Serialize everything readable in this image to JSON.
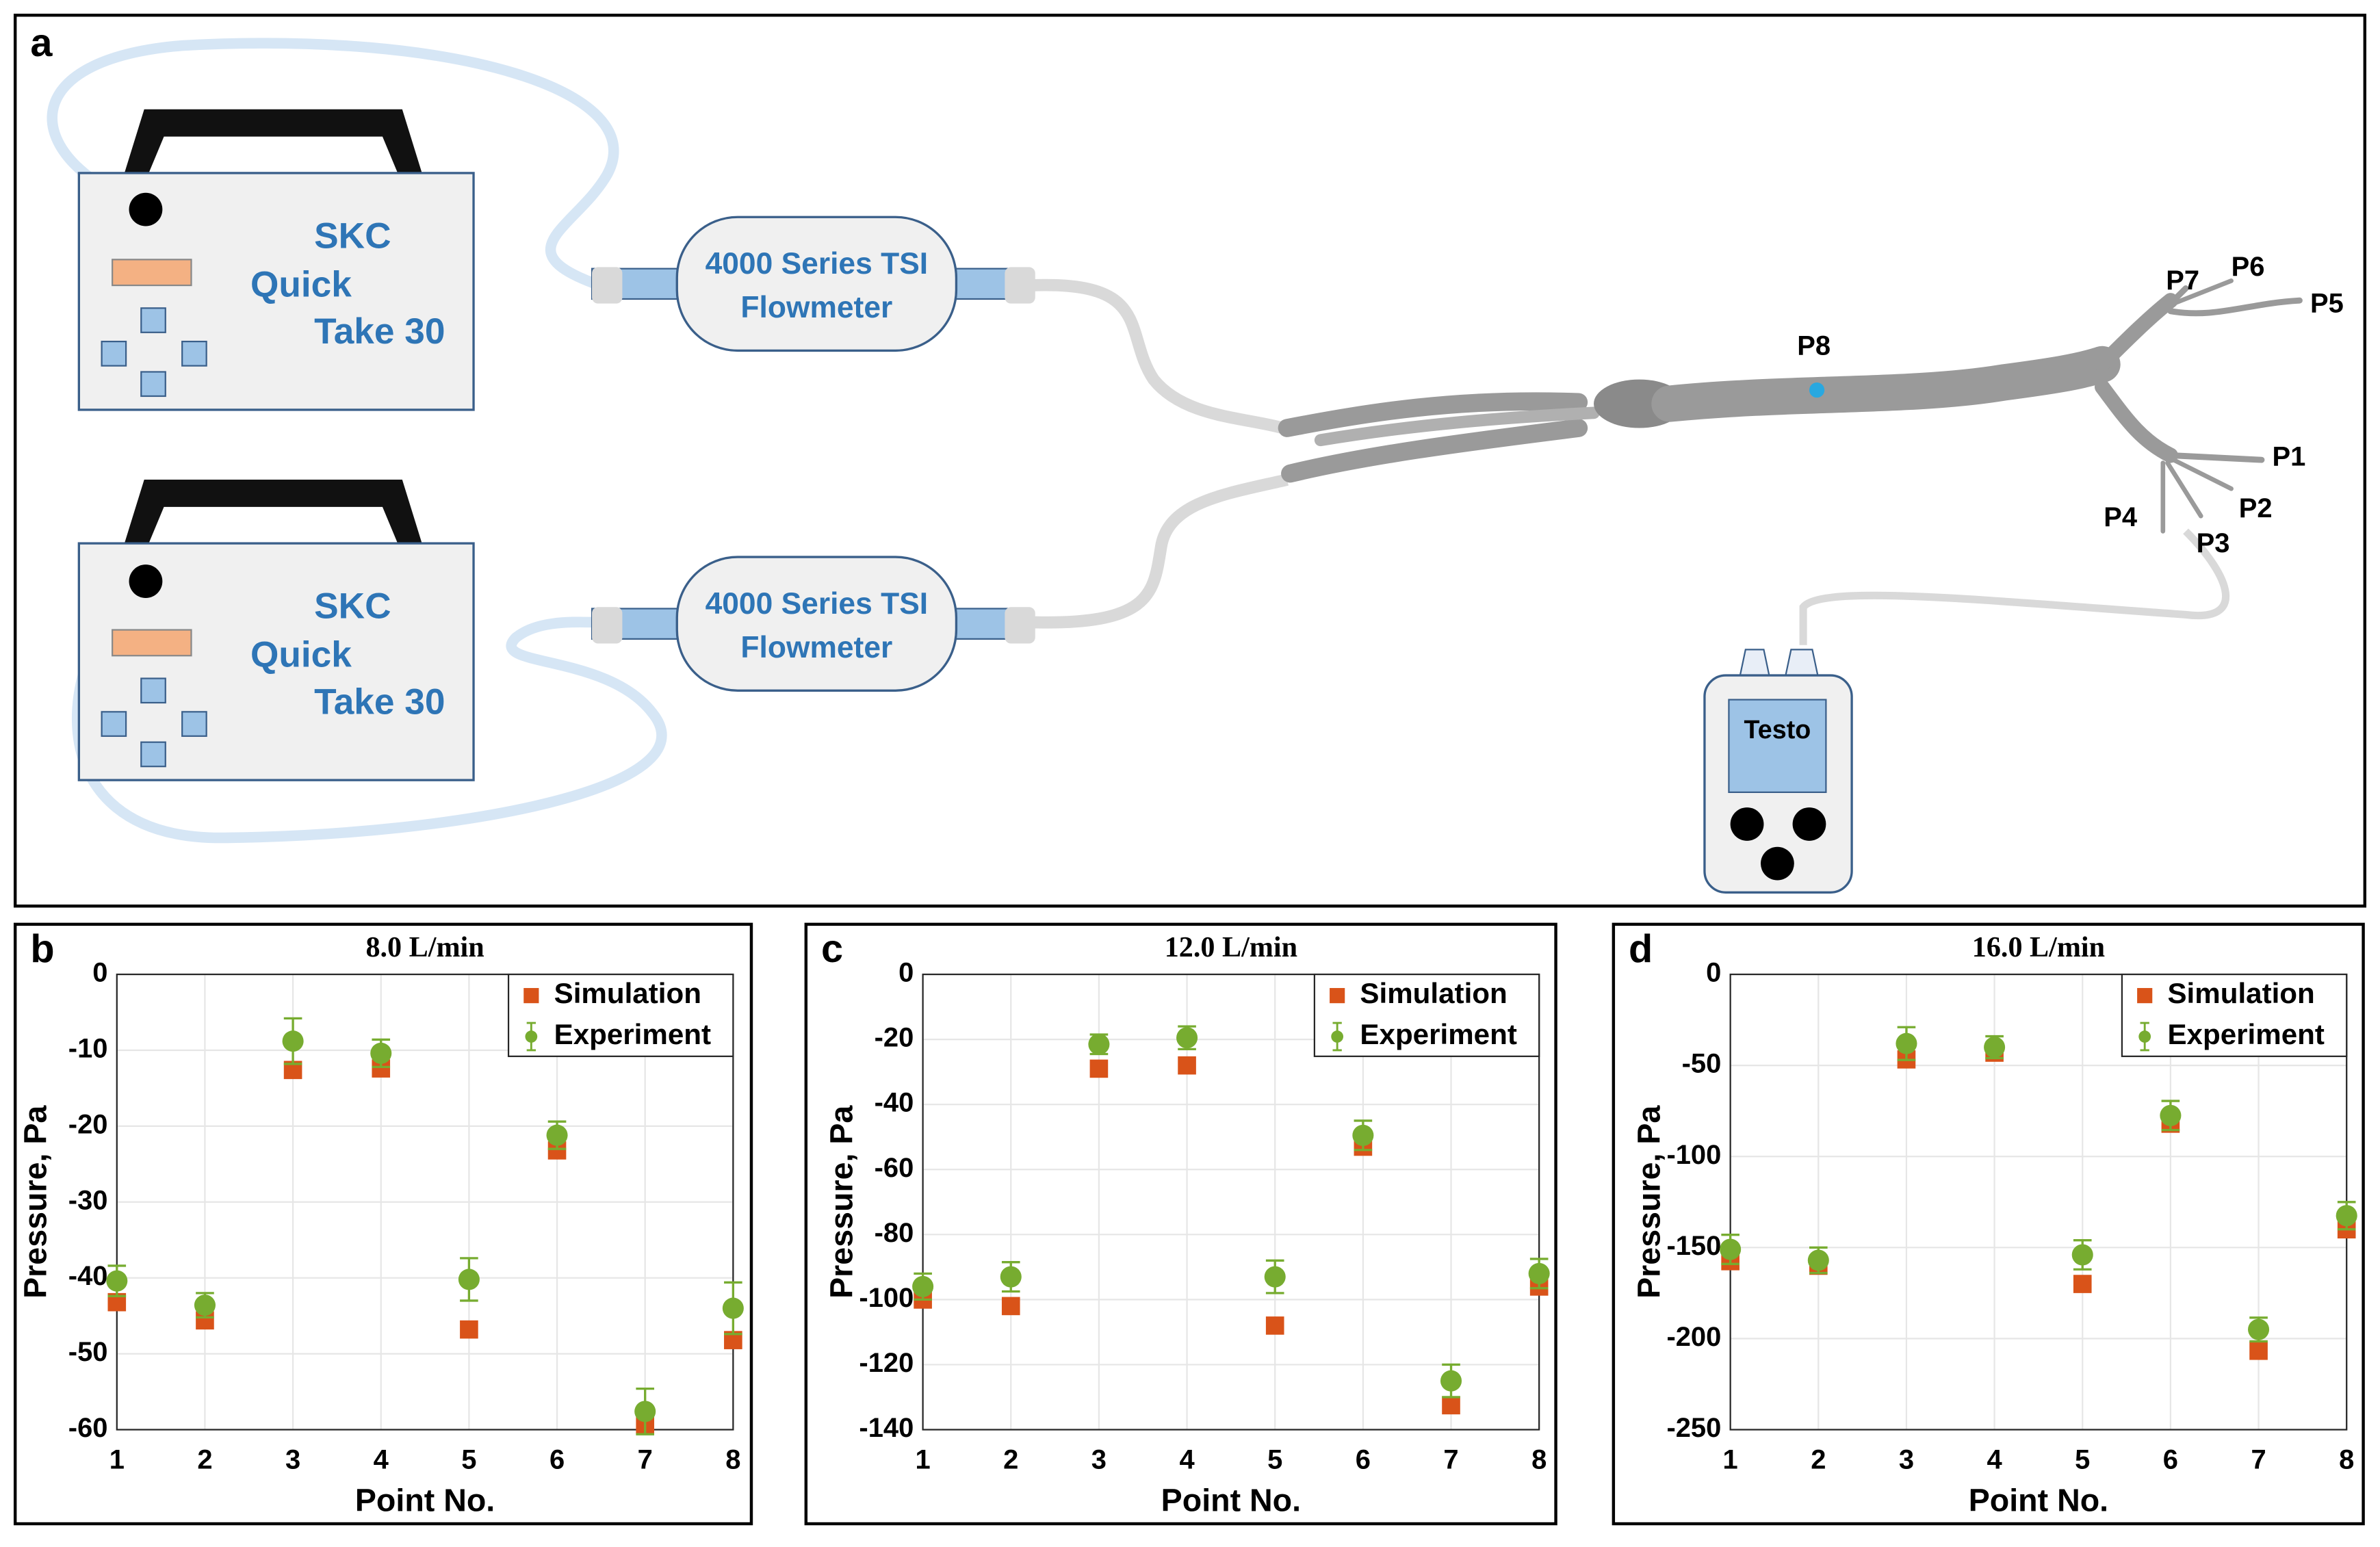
{
  "diagram": {
    "panel": "a",
    "pumps": [
      [
        "SKC",
        "Quick",
        "Take 30"
      ],
      [
        "SKC",
        "Quick",
        "Take 30"
      ]
    ],
    "flowmeters": [
      [
        "4000 Series TSI",
        "Flowmeter"
      ],
      [
        "4000 Series TSI",
        "Flowmeter"
      ]
    ],
    "meter": "Testo",
    "points": [
      "P1",
      "P2",
      "P3",
      "P4",
      "P5",
      "P6",
      "P7",
      "P8"
    ]
  },
  "chart_data": [
    {
      "type": "scatter",
      "panel": "b",
      "title": "8.0 L/min",
      "x_label": "Point No.",
      "y_label": "Pressure, Pa",
      "x": [
        1,
        2,
        3,
        4,
        5,
        6,
        7,
        8
      ],
      "xlim": [
        1,
        8
      ],
      "xticks": [
        1,
        2,
        3,
        4,
        5,
        6,
        7,
        8
      ],
      "ylim": [
        -60,
        0
      ],
      "yticks": [
        0,
        -10,
        -20,
        -30,
        -40,
        -50,
        -60
      ],
      "grid": true,
      "legend": "upper right",
      "series": [
        {
          "name": "Simulation",
          "color": "#d95319",
          "marker": "square",
          "values": [
            -43.2,
            -45.6,
            -12.6,
            -12.4,
            -46.8,
            -23.2,
            -59.4,
            -48.2
          ]
        },
        {
          "name": "Experiment",
          "color": "#77ac30",
          "marker": "circle",
          "values": [
            -40.4,
            -43.6,
            -8.8,
            -10.4,
            -40.2,
            -21.2,
            -57.6,
            -44
          ],
          "error": [
            2,
            1.6,
            3,
            1.8,
            2.8,
            1.8,
            3,
            3.4
          ]
        }
      ]
    },
    {
      "type": "scatter",
      "panel": "c",
      "title": "12.0 L/min",
      "x_label": "Point No.",
      "y_label": "Pressure, Pa",
      "x": [
        1,
        2,
        3,
        4,
        5,
        6,
        7,
        8
      ],
      "xlim": [
        1,
        8
      ],
      "xticks": [
        1,
        2,
        3,
        4,
        5,
        6,
        7,
        8
      ],
      "ylim": [
        -140,
        0
      ],
      "yticks": [
        0,
        -20,
        -40,
        -60,
        -80,
        -100,
        -120,
        -140
      ],
      "grid": true,
      "legend": "upper right",
      "series": [
        {
          "name": "Simulation",
          "color": "#d95319",
          "marker": "square",
          "values": [
            -100,
            -102,
            -29,
            -28,
            -108,
            -53,
            -132.5,
            -96
          ]
        },
        {
          "name": "Experiment",
          "color": "#77ac30",
          "marker": "circle",
          "values": [
            -96,
            -93,
            -21.5,
            -19.5,
            -93,
            -49.5,
            -125,
            -92
          ],
          "error": [
            4,
            4.5,
            3,
            3.5,
            5,
            4.5,
            5,
            4.5
          ]
        }
      ]
    },
    {
      "type": "scatter",
      "panel": "d",
      "title": "16.0 L/min",
      "x_label": "Point No.",
      "y_label": "Pressure, Pa",
      "x": [
        1,
        2,
        3,
        4,
        5,
        6,
        7,
        8
      ],
      "xlim": [
        1,
        8
      ],
      "xticks": [
        1,
        2,
        3,
        4,
        5,
        6,
        7,
        8
      ],
      "ylim": [
        -250,
        0
      ],
      "yticks": [
        0,
        -50,
        -100,
        -150,
        -200,
        -250
      ],
      "grid": true,
      "legend": "upper right",
      "series": [
        {
          "name": "Simulation",
          "color": "#d95319",
          "marker": "square",
          "values": [
            -157.5,
            -160,
            -46.7,
            -43,
            -170,
            -82,
            -206.7,
            -140
          ]
        },
        {
          "name": "Experiment",
          "color": "#77ac30",
          "marker": "circle",
          "values": [
            -151,
            -157,
            -38,
            -40,
            -154,
            -77.5,
            -195,
            -132.5
          ],
          "error": [
            8,
            7,
            9,
            6,
            8,
            8,
            6.5,
            7.5
          ]
        }
      ]
    }
  ]
}
